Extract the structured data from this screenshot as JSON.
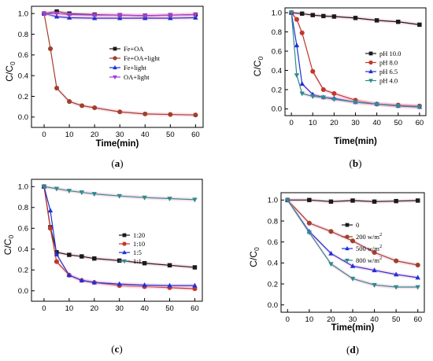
{
  "colors": {
    "black": "#1a1a1a",
    "brown": "#a0402a",
    "blue": "#1f2fd6",
    "purple": "#a43bd6",
    "red": "#c0392b",
    "teal": "#2e8b8b",
    "errorband": "#f3a6c8"
  },
  "chart_data": [
    {
      "type": "line",
      "panel_label": "a",
      "xlabel": "Time(min)",
      "ylabel": "C/C",
      "ylabel_sub": "0",
      "xlim": [
        -5,
        63
      ],
      "ylim": [
        -0.1,
        1.07
      ],
      "xticks": [
        0,
        10,
        20,
        30,
        40,
        50,
        60
      ],
      "yticks": [
        0.0,
        0.2,
        0.4,
        0.6,
        0.8,
        1.0
      ],
      "ytick_labels": [
        "0.0",
        "0.2",
        "0.4",
        "0.6",
        "0.8",
        "1.0"
      ],
      "legend_placement": "center-right",
      "series": [
        {
          "name": "Fe+OA",
          "color": "black",
          "marker": "square",
          "x": [
            0,
            5,
            10,
            20,
            30,
            40,
            50,
            60
          ],
          "y": [
            1.0,
            1.02,
            1.0,
            0.99,
            0.985,
            0.98,
            0.985,
            0.99
          ]
        },
        {
          "name": "Fe+OA+light",
          "color": "brown",
          "marker": "circle",
          "x": [
            0,
            2.5,
            5,
            10,
            15,
            20,
            30,
            40,
            50,
            60
          ],
          "y": [
            1.0,
            0.66,
            0.28,
            0.15,
            0.11,
            0.09,
            0.05,
            0.03,
            0.025,
            0.02
          ]
        },
        {
          "name": "Fe+light",
          "color": "blue",
          "marker": "triangle-up",
          "x": [
            0,
            5,
            10,
            20,
            30,
            40,
            50,
            60
          ],
          "y": [
            1.0,
            0.97,
            0.96,
            0.955,
            0.955,
            0.955,
            0.955,
            0.96
          ]
        },
        {
          "name": "OA+light",
          "color": "purple",
          "marker": "triangle-down",
          "x": [
            0,
            5,
            10,
            20,
            30,
            40,
            50,
            60
          ],
          "y": [
            1.0,
            1.0,
            0.99,
            0.985,
            0.985,
            0.98,
            0.985,
            0.99
          ]
        }
      ]
    },
    {
      "type": "line",
      "panel_label": "b",
      "xlabel": "Time(min)",
      "ylabel": "C/C",
      "ylabel_sub": "0",
      "xlim": [
        -3,
        63
      ],
      "ylim": [
        -0.07,
        1.05
      ],
      "xticks": [
        0,
        10,
        20,
        30,
        40,
        50,
        60
      ],
      "yticks": [
        0.0,
        0.2,
        0.4,
        0.6,
        0.8,
        1.0
      ],
      "ytick_labels": [
        "0.0",
        "0.2",
        "0.4",
        "0.6",
        "0.8",
        "1.0"
      ],
      "legend_placement": "center-right",
      "series": [
        {
          "name": "pH 10.0",
          "color": "black",
          "marker": "square",
          "x": [
            0,
            5,
            10,
            15,
            20,
            30,
            40,
            50,
            60
          ],
          "y": [
            1.0,
            0.99,
            0.975,
            0.965,
            0.96,
            0.945,
            0.92,
            0.905,
            0.875
          ]
        },
        {
          "name": "pH 8.0",
          "color": "red",
          "marker": "circle",
          "x": [
            0,
            2.5,
            5,
            10,
            15,
            20,
            30,
            40,
            50,
            60
          ],
          "y": [
            1.0,
            0.93,
            0.79,
            0.39,
            0.2,
            0.16,
            0.09,
            0.05,
            0.04,
            0.03
          ]
        },
        {
          "name": "pH 6.5",
          "color": "blue",
          "marker": "triangle-up",
          "x": [
            0,
            2.5,
            5,
            10,
            15,
            20,
            30,
            40,
            50,
            60
          ],
          "y": [
            1.0,
            0.66,
            0.26,
            0.15,
            0.12,
            0.11,
            0.07,
            0.05,
            0.03,
            0.02
          ]
        },
        {
          "name": "pH 4.0",
          "color": "teal",
          "marker": "triangle-down",
          "x": [
            0,
            2.5,
            5,
            10,
            15,
            20,
            30,
            40,
            50,
            60
          ],
          "y": [
            1.0,
            0.35,
            0.16,
            0.13,
            0.12,
            0.1,
            0.07,
            0.05,
            0.03,
            0.02
          ]
        }
      ]
    },
    {
      "type": "line",
      "panel_label": "c",
      "xlabel": "",
      "ylabel": "C/C",
      "ylabel_sub": "0",
      "xlim": [
        -5,
        63
      ],
      "ylim": [
        -0.1,
        1.07
      ],
      "xticks": [
        0,
        10,
        20,
        30,
        40,
        50,
        60
      ],
      "yticks": [
        0.0,
        0.2,
        0.4,
        0.6,
        0.8,
        1.0
      ],
      "ytick_labels": [
        "0.0",
        "0.2",
        "0.4",
        "0.6",
        "0.8",
        "1.0"
      ],
      "legend_placement": "center-right",
      "series": [
        {
          "name": "1:20",
          "color": "black",
          "marker": "square",
          "x": [
            0,
            2.5,
            5,
            10,
            15,
            20,
            30,
            40,
            50,
            60
          ],
          "y": [
            1.0,
            0.61,
            0.37,
            0.345,
            0.33,
            0.31,
            0.29,
            0.265,
            0.245,
            0.225
          ]
        },
        {
          "name": "1:10",
          "color": "red",
          "marker": "circle",
          "x": [
            0,
            2.5,
            5,
            10,
            15,
            20,
            30,
            40,
            50,
            60
          ],
          "y": [
            1.0,
            0.6,
            0.28,
            0.15,
            0.1,
            0.08,
            0.05,
            0.04,
            0.03,
            0.02
          ]
        },
        {
          "name": "1:5",
          "color": "blue",
          "marker": "triangle-up",
          "x": [
            0,
            2.5,
            5,
            10,
            15,
            20,
            30,
            40,
            50,
            60
          ],
          "y": [
            1.0,
            0.77,
            0.35,
            0.15,
            0.1,
            0.08,
            0.065,
            0.055,
            0.05,
            0.05
          ]
        },
        {
          "name": "1:1",
          "color": "teal",
          "marker": "triangle-down",
          "x": [
            0,
            5,
            10,
            15,
            20,
            30,
            40,
            50,
            60
          ],
          "y": [
            1.0,
            0.98,
            0.96,
            0.945,
            0.93,
            0.91,
            0.895,
            0.885,
            0.875
          ]
        }
      ]
    },
    {
      "type": "line",
      "panel_label": "d",
      "xlabel": "Time(min)",
      "ylabel": "C/C",
      "ylabel_sub": "0",
      "xlim": [
        -3,
        63
      ],
      "ylim": [
        -0.07,
        1.07
      ],
      "xticks": [
        0,
        10,
        20,
        30,
        40,
        50,
        60
      ],
      "yticks": [
        0.0,
        0.2,
        0.4,
        0.6,
        0.8,
        1.0
      ],
      "ytick_labels": [
        "0.0",
        "0.2",
        "0.4",
        "0.6",
        "0.8",
        "1.0"
      ],
      "legend_placement": "right",
      "series": [
        {
          "name": "0",
          "color": "black",
          "marker": "square",
          "x": [
            0,
            10,
            20,
            30,
            40,
            50,
            60
          ],
          "y": [
            1.0,
            1.0,
            0.985,
            0.995,
            0.985,
            0.99,
            0.995
          ]
        },
        {
          "name": "200 w/m",
          "sup": "2",
          "color": "brown",
          "marker": "circle",
          "x": [
            0,
            10,
            20,
            30,
            40,
            50,
            60
          ],
          "y": [
            1.0,
            0.78,
            0.7,
            0.61,
            0.5,
            0.42,
            0.38
          ]
        },
        {
          "name": "500 w/m",
          "sup": "2",
          "color": "blue",
          "marker": "triangle-up",
          "x": [
            0,
            10,
            20,
            30,
            40,
            50,
            60
          ],
          "y": [
            1.0,
            0.7,
            0.49,
            0.37,
            0.33,
            0.29,
            0.26
          ]
        },
        {
          "name": "800 w/m",
          "sup": "2",
          "color": "teal",
          "marker": "triangle-down",
          "x": [
            0,
            10,
            20,
            30,
            40,
            50,
            60
          ],
          "y": [
            1.0,
            0.69,
            0.39,
            0.25,
            0.19,
            0.17,
            0.17
          ]
        }
      ]
    }
  ]
}
